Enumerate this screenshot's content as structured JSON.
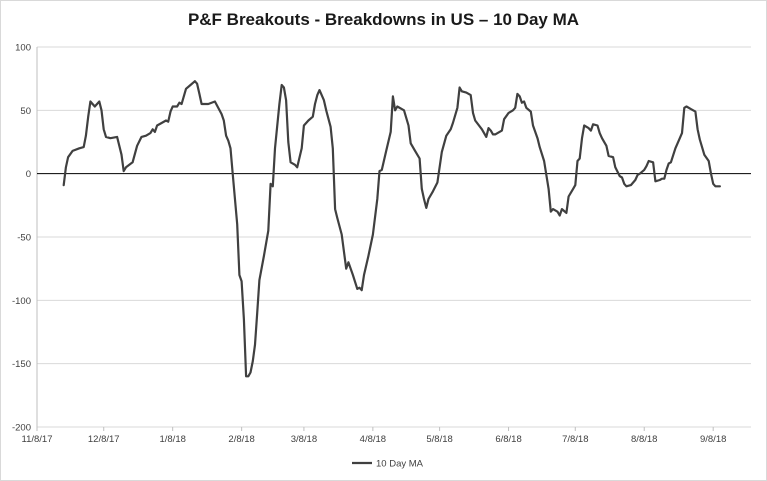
{
  "chart_data": {
    "type": "line",
    "title": "P&F Breakouts - Breakdowns in US – 10 Day MA",
    "xlabel": "",
    "ylabel": "",
    "ylim": [
      -200,
      100
    ],
    "xlim": [
      "2017-11-08",
      "2018-09-25"
    ],
    "yticks": [
      100,
      50,
      0,
      -50,
      -100,
      -150,
      -200
    ],
    "xticks": [
      "11/8/17",
      "12/8/17",
      "1/8/18",
      "2/8/18",
      "3/8/18",
      "4/8/18",
      "5/8/18",
      "6/8/18",
      "7/8/18",
      "8/8/18",
      "9/8/18"
    ],
    "grid": "horizontal",
    "legend": "bottom",
    "line_color": "#404040",
    "series": [
      {
        "name": "10 Day MA",
        "points": [
          [
            "2017-11-20",
            -9
          ],
          [
            "2017-11-21",
            5
          ],
          [
            "2017-11-22",
            13
          ],
          [
            "2017-11-24",
            18
          ],
          [
            "2017-11-27",
            20
          ],
          [
            "2017-11-29",
            21
          ],
          [
            "2017-11-30",
            30
          ],
          [
            "2017-12-01",
            45
          ],
          [
            "2017-12-02",
            57
          ],
          [
            "2017-12-04",
            53
          ],
          [
            "2017-12-06",
            57
          ],
          [
            "2017-12-07",
            50
          ],
          [
            "2017-12-08",
            35
          ],
          [
            "2017-12-09",
            29
          ],
          [
            "2017-12-11",
            28
          ],
          [
            "2017-12-14",
            29
          ],
          [
            "2017-12-16",
            15
          ],
          [
            "2017-12-17",
            2
          ],
          [
            "2017-12-18",
            5
          ],
          [
            "2017-12-21",
            9
          ],
          [
            "2017-12-23",
            22
          ],
          [
            "2017-12-25",
            29
          ],
          [
            "2017-12-27",
            30
          ],
          [
            "2017-12-29",
            32
          ],
          [
            "2017-12-30",
            35
          ],
          [
            "2017-12-31",
            33
          ],
          [
            "2018-01-01",
            38
          ],
          [
            "2018-01-03",
            40
          ],
          [
            "2018-01-05",
            42
          ],
          [
            "2018-01-06",
            41
          ],
          [
            "2018-01-07",
            49
          ],
          [
            "2018-01-08",
            53
          ],
          [
            "2018-01-10",
            53
          ],
          [
            "2018-01-11",
            56
          ],
          [
            "2018-01-12",
            55
          ],
          [
            "2018-01-14",
            67
          ],
          [
            "2018-01-16",
            70
          ],
          [
            "2018-01-18",
            73
          ],
          [
            "2018-01-19",
            71
          ],
          [
            "2018-01-20",
            63
          ],
          [
            "2018-01-21",
            55
          ],
          [
            "2018-01-24",
            55
          ],
          [
            "2018-01-27",
            57
          ],
          [
            "2018-01-30",
            47
          ],
          [
            "2018-01-31",
            42
          ],
          [
            "2018-02-01",
            30
          ],
          [
            "2018-02-02",
            26
          ],
          [
            "2018-02-03",
            20
          ],
          [
            "2018-02-04",
            0
          ],
          [
            "2018-02-06",
            -40
          ],
          [
            "2018-02-07",
            -80
          ],
          [
            "2018-02-08",
            -85
          ],
          [
            "2018-02-09",
            -115
          ],
          [
            "2018-02-10",
            -160
          ],
          [
            "2018-02-11",
            -160
          ],
          [
            "2018-02-12",
            -157
          ],
          [
            "2018-02-13",
            -148
          ],
          [
            "2018-02-14",
            -135
          ],
          [
            "2018-02-15",
            -110
          ],
          [
            "2018-02-16",
            -84
          ],
          [
            "2018-02-18",
            -65
          ],
          [
            "2018-02-20",
            -45
          ],
          [
            "2018-02-21",
            -8
          ],
          [
            "2018-02-22",
            -10
          ],
          [
            "2018-02-23",
            20
          ],
          [
            "2018-02-25",
            55
          ],
          [
            "2018-02-26",
            70
          ],
          [
            "2018-02-27",
            68
          ],
          [
            "2018-02-28",
            58
          ],
          [
            "2018-03-01",
            25
          ],
          [
            "2018-03-02",
            9
          ],
          [
            "2018-03-04",
            7
          ],
          [
            "2018-03-05",
            5
          ],
          [
            "2018-03-07",
            20
          ],
          [
            "2018-03-08",
            38
          ],
          [
            "2018-03-10",
            42
          ],
          [
            "2018-03-12",
            45
          ],
          [
            "2018-03-13",
            55
          ],
          [
            "2018-03-14",
            62
          ],
          [
            "2018-03-15",
            66
          ],
          [
            "2018-03-17",
            58
          ],
          [
            "2018-03-18",
            50
          ],
          [
            "2018-03-20",
            37
          ],
          [
            "2018-03-21",
            20
          ],
          [
            "2018-03-22",
            -28
          ],
          [
            "2018-03-23",
            -35
          ],
          [
            "2018-03-25",
            -48
          ],
          [
            "2018-03-27",
            -75
          ],
          [
            "2018-03-28",
            -70
          ],
          [
            "2018-03-30",
            -80
          ],
          [
            "2018-04-01",
            -91
          ],
          [
            "2018-04-02",
            -90
          ],
          [
            "2018-04-03",
            -92
          ],
          [
            "2018-04-04",
            -80
          ],
          [
            "2018-04-06",
            -65
          ],
          [
            "2018-04-08",
            -48
          ],
          [
            "2018-04-10",
            -20
          ],
          [
            "2018-04-11",
            2
          ],
          [
            "2018-04-12",
            3
          ],
          [
            "2018-04-14",
            18
          ],
          [
            "2018-04-16",
            33
          ],
          [
            "2018-04-17",
            61
          ],
          [
            "2018-04-18",
            50
          ],
          [
            "2018-04-19",
            53
          ],
          [
            "2018-04-22",
            50
          ],
          [
            "2018-04-24",
            38
          ],
          [
            "2018-04-25",
            24
          ],
          [
            "2018-04-27",
            18
          ],
          [
            "2018-04-29",
            12
          ],
          [
            "2018-04-30",
            -12
          ],
          [
            "2018-05-01",
            -20
          ],
          [
            "2018-05-02",
            -27
          ],
          [
            "2018-05-03",
            -20
          ],
          [
            "2018-05-05",
            -14
          ],
          [
            "2018-05-07",
            -7
          ],
          [
            "2018-05-09",
            17
          ],
          [
            "2018-05-11",
            30
          ],
          [
            "2018-05-13",
            35
          ],
          [
            "2018-05-14",
            40
          ],
          [
            "2018-05-16",
            52
          ],
          [
            "2018-05-17",
            68
          ],
          [
            "2018-05-18",
            65
          ],
          [
            "2018-05-20",
            64
          ],
          [
            "2018-05-22",
            62
          ],
          [
            "2018-05-23",
            48
          ],
          [
            "2018-05-24",
            42
          ],
          [
            "2018-05-27",
            35
          ],
          [
            "2018-05-29",
            29
          ],
          [
            "2018-05-30",
            36
          ],
          [
            "2018-05-31",
            34
          ],
          [
            "2018-06-01",
            31
          ],
          [
            "2018-06-02",
            31
          ],
          [
            "2018-06-05",
            34
          ],
          [
            "2018-06-06",
            43
          ],
          [
            "2018-06-08",
            48
          ],
          [
            "2018-06-10",
            50
          ],
          [
            "2018-06-11",
            52
          ],
          [
            "2018-06-12",
            63
          ],
          [
            "2018-06-13",
            61
          ],
          [
            "2018-06-14",
            56
          ],
          [
            "2018-06-15",
            57
          ],
          [
            "2018-06-16",
            52
          ],
          [
            "2018-06-18",
            49
          ],
          [
            "2018-06-19",
            38
          ],
          [
            "2018-06-21",
            28
          ],
          [
            "2018-06-22",
            21
          ],
          [
            "2018-06-24",
            10
          ],
          [
            "2018-06-26",
            -12
          ],
          [
            "2018-06-27",
            -30
          ],
          [
            "2018-06-28",
            -28
          ],
          [
            "2018-06-30",
            -30
          ],
          [
            "2018-07-01",
            -33
          ],
          [
            "2018-07-02",
            -28
          ],
          [
            "2018-07-04",
            -31
          ],
          [
            "2018-07-05",
            -18
          ],
          [
            "2018-07-07",
            -12
          ],
          [
            "2018-07-08",
            -9
          ],
          [
            "2018-07-09",
            10
          ],
          [
            "2018-07-10",
            12
          ],
          [
            "2018-07-11",
            28
          ],
          [
            "2018-07-12",
            38
          ],
          [
            "2018-07-14",
            36
          ],
          [
            "2018-07-15",
            34
          ],
          [
            "2018-07-16",
            39
          ],
          [
            "2018-07-18",
            38
          ],
          [
            "2018-07-19",
            32
          ],
          [
            "2018-07-20",
            28
          ],
          [
            "2018-07-22",
            22
          ],
          [
            "2018-07-23",
            14
          ],
          [
            "2018-07-25",
            13
          ],
          [
            "2018-07-26",
            5
          ],
          [
            "2018-07-28",
            -2
          ],
          [
            "2018-07-29",
            -3
          ],
          [
            "2018-07-30",
            -8
          ],
          [
            "2018-07-31",
            -10
          ],
          [
            "2018-08-02",
            -9
          ],
          [
            "2018-08-04",
            -5
          ],
          [
            "2018-08-05",
            -1
          ],
          [
            "2018-08-06",
            0
          ],
          [
            "2018-08-08",
            3
          ],
          [
            "2018-08-09",
            6
          ],
          [
            "2018-08-10",
            10
          ],
          [
            "2018-08-12",
            9
          ],
          [
            "2018-08-13",
            -6
          ],
          [
            "2018-08-15",
            -5
          ],
          [
            "2018-08-16",
            -4
          ],
          [
            "2018-08-17",
            -4
          ],
          [
            "2018-08-18",
            3
          ],
          [
            "2018-08-19",
            8
          ],
          [
            "2018-08-20",
            9
          ],
          [
            "2018-08-22",
            20
          ],
          [
            "2018-08-24",
            28
          ],
          [
            "2018-08-25",
            32
          ],
          [
            "2018-08-26",
            52
          ],
          [
            "2018-08-27",
            53
          ],
          [
            "2018-08-29",
            51
          ],
          [
            "2018-08-31",
            49
          ],
          [
            "2018-09-01",
            35
          ],
          [
            "2018-09-02",
            27
          ],
          [
            "2018-09-04",
            15
          ],
          [
            "2018-09-06",
            10
          ],
          [
            "2018-09-07",
            0
          ],
          [
            "2018-09-08",
            -8
          ],
          [
            "2018-09-09",
            -10
          ],
          [
            "2018-09-11",
            -10
          ]
        ]
      }
    ]
  }
}
